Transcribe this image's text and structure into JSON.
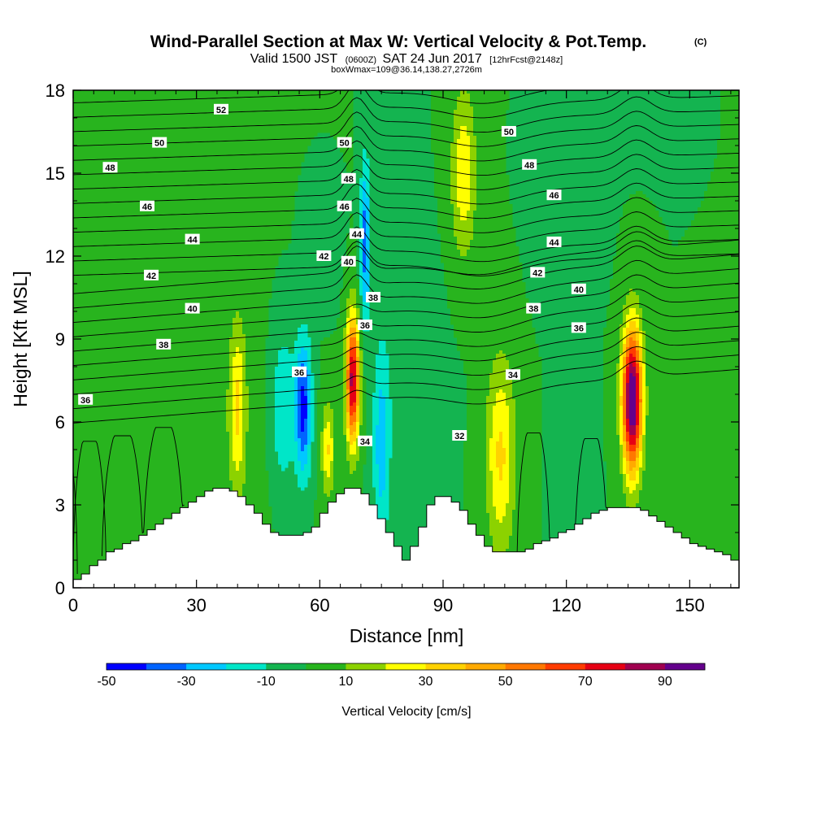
{
  "chart_data": {
    "type": "heatmap",
    "title": "Wind-Parallel Section at Max W: Vertical Velocity & Pot.Temp.",
    "title_mark": "(C)",
    "subtitle_parts": [
      "Valid 1500 JST",
      "(0600Z)",
      "SAT 24 Jun 2017",
      "[12hrFcst@2148z]"
    ],
    "subtitle2": "boxWmax=109@36.14,138.27,2726m",
    "xlabel": "Distance [nm]",
    "ylabel": "Height [Kft MSL]",
    "xlim": [
      0,
      162
    ],
    "ylim": [
      0,
      18
    ],
    "xticks": [
      0,
      30,
      60,
      90,
      120,
      150
    ],
    "yticks": [
      0,
      3,
      6,
      9,
      12,
      15,
      18
    ],
    "colorbar": {
      "label": "Vertical Velocity [cm/s]",
      "tick_values": [
        -50,
        -30,
        -10,
        10,
        30,
        50,
        70,
        90
      ],
      "tick_labels": [
        "-50",
        "-30",
        "-10",
        "10",
        "30",
        "50",
        "70",
        "90"
      ],
      "range": [
        -50,
        100
      ],
      "bin_width": 10,
      "colors": [
        "#0000ff",
        "#0064ff",
        "#00c8ff",
        "#00e6c8",
        "#14b450",
        "#28b41e",
        "#8cd200",
        "#ffff00",
        "#ffd200",
        "#ffaa00",
        "#ff7800",
        "#ff3c00",
        "#e60014",
        "#a00050",
        "#64008c"
      ]
    },
    "terrain": {
      "x": [
        0,
        2,
        4,
        6,
        8,
        10,
        12,
        14,
        16,
        18,
        20,
        22,
        24,
        26,
        28,
        30,
        32,
        34,
        36,
        38,
        40,
        42,
        44,
        46,
        48,
        50,
        52,
        54,
        56,
        58,
        60,
        62,
        64,
        66,
        68,
        70,
        72,
        74,
        76,
        78,
        80,
        82,
        84,
        86,
        88,
        90,
        92,
        94,
        96,
        98,
        100,
        102,
        104,
        106,
        108,
        110,
        112,
        114,
        116,
        118,
        120,
        122,
        124,
        126,
        128,
        130,
        132,
        134,
        136,
        138,
        140,
        142,
        144,
        146,
        148,
        150,
        152,
        154,
        156,
        158,
        160,
        162
      ],
      "z": [
        0.3,
        0.5,
        0.8,
        1.0,
        1.3,
        1.4,
        1.6,
        1.7,
        1.9,
        2.1,
        2.3,
        2.5,
        2.7,
        2.9,
        3.1,
        3.3,
        3.5,
        3.6,
        3.6,
        3.5,
        3.3,
        3.0,
        2.7,
        2.3,
        2.0,
        1.9,
        1.9,
        1.9,
        2.0,
        2.2,
        2.7,
        3.1,
        3.4,
        3.6,
        3.6,
        3.4,
        3.0,
        2.5,
        2.0,
        1.5,
        1.0,
        1.5,
        2.2,
        3.0,
        3.3,
        3.3,
        3.1,
        2.8,
        2.3,
        1.9,
        1.5,
        1.3,
        1.3,
        1.3,
        1.3,
        1.4,
        1.6,
        1.7,
        1.8,
        2.0,
        2.1,
        2.3,
        2.5,
        2.7,
        2.8,
        2.9,
        2.9,
        2.9,
        2.9,
        2.8,
        2.6,
        2.4,
        2.2,
        2.0,
        1.8,
        1.6,
        1.5,
        1.4,
        1.3,
        1.2,
        1.0,
        1.0
      ]
    },
    "w_features": [
      {
        "x": 68,
        "z": 7.5,
        "sx": 1.6,
        "sz": 2.3,
        "w": 85
      },
      {
        "x": 62,
        "z": 5.0,
        "sx": 1.5,
        "sz": 1.6,
        "w": 30
      },
      {
        "x": 136,
        "z": 6.8,
        "sx": 2.4,
        "sz": 2.6,
        "w": 105
      },
      {
        "x": 40,
        "z": 6.5,
        "sx": 2.0,
        "sz": 3.0,
        "w": 30
      },
      {
        "x": 104,
        "z": 4.8,
        "sx": 3.5,
        "sz": 3.5,
        "w": 32
      },
      {
        "x": 95,
        "z": 15.0,
        "sx": 3.0,
        "sz": 3.0,
        "w": 28
      },
      {
        "x": 80,
        "z": 8.0,
        "sx": 8.0,
        "sz": 4.0,
        "w": -5
      },
      {
        "x": 75,
        "z": 5.0,
        "sx": 2.0,
        "sz": 3.5,
        "w": -25
      },
      {
        "x": 71,
        "z": 12.5,
        "sx": 1.2,
        "sz": 3.0,
        "w": -35
      },
      {
        "x": 56,
        "z": 6.5,
        "sx": 2.0,
        "sz": 2.5,
        "w": -45
      },
      {
        "x": 51,
        "z": 6.5,
        "sx": 3.0,
        "sz": 3.0,
        "w": -20
      },
      {
        "x": 120,
        "z": 13.0,
        "sx": 6.0,
        "sz": 2.0,
        "w": -5
      },
      {
        "x": 122,
        "z": 5.0,
        "sx": 3.0,
        "sz": 3.0,
        "w": -10
      },
      {
        "x": 128,
        "z": 17.0,
        "sx": 6.0,
        "sz": 1.5,
        "w": -5
      },
      {
        "x": 60,
        "z": 12.0,
        "sx": 4.0,
        "sz": 2.0,
        "w": -6
      },
      {
        "x": 20,
        "z": 6.0,
        "sx": 30.0,
        "sz": 6.0,
        "w": 5
      }
    ],
    "theta_levels": [
      32,
      34,
      36,
      38,
      40,
      42,
      44,
      46,
      48,
      50,
      52
    ],
    "theta_labels": [
      {
        "text": "52",
        "x": 36,
        "z": 17.3
      },
      {
        "text": "50",
        "x": 21,
        "z": 16.1
      },
      {
        "text": "48",
        "x": 9,
        "z": 15.2
      },
      {
        "text": "46",
        "x": 18,
        "z": 13.8
      },
      {
        "text": "44",
        "x": 29,
        "z": 12.6
      },
      {
        "text": "42",
        "x": 19,
        "z": 11.3
      },
      {
        "text": "40",
        "x": 29,
        "z": 10.1
      },
      {
        "text": "38",
        "x": 22,
        "z": 8.8
      },
      {
        "text": "36",
        "x": 3,
        "z": 6.8
      },
      {
        "text": "50",
        "x": 66,
        "z": 16.1
      },
      {
        "text": "48",
        "x": 67,
        "z": 14.8
      },
      {
        "text": "46",
        "x": 66,
        "z": 13.8
      },
      {
        "text": "44",
        "x": 69,
        "z": 12.8
      },
      {
        "text": "42",
        "x": 61,
        "z": 12.0
      },
      {
        "text": "40",
        "x": 67,
        "z": 11.8
      },
      {
        "text": "38",
        "x": 73,
        "z": 10.5
      },
      {
        "text": "36",
        "x": 71,
        "z": 9.5
      },
      {
        "text": "36",
        "x": 55,
        "z": 7.8
      },
      {
        "text": "34",
        "x": 71,
        "z": 5.3
      },
      {
        "text": "32",
        "x": 94,
        "z": 5.5
      },
      {
        "text": "34",
        "x": 107,
        "z": 7.7
      },
      {
        "text": "36",
        "x": 123,
        "z": 9.4
      },
      {
        "text": "38",
        "x": 112,
        "z": 10.1
      },
      {
        "text": "40",
        "x": 123,
        "z": 10.8
      },
      {
        "text": "42",
        "x": 113,
        "z": 11.4
      },
      {
        "text": "44",
        "x": 117,
        "z": 12.5
      },
      {
        "text": "46",
        "x": 117,
        "z": 14.2
      },
      {
        "text": "48",
        "x": 111,
        "z": 15.3
      },
      {
        "text": "50",
        "x": 106,
        "z": 16.5
      }
    ]
  }
}
